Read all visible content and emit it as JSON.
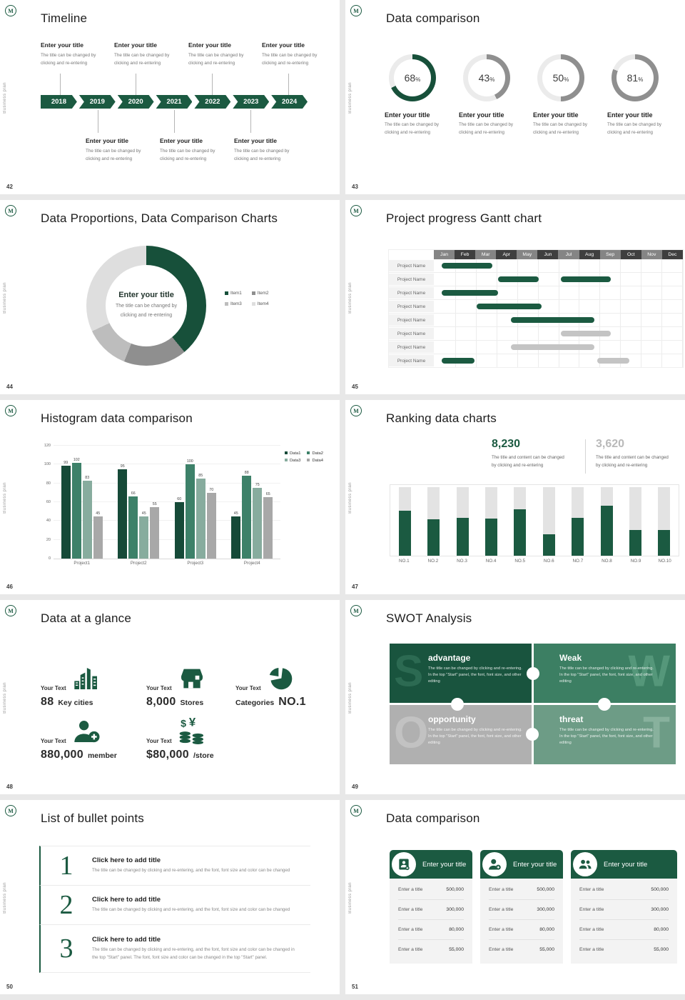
{
  "chrome": {
    "logo_letter": "M",
    "side_label": "Business plan"
  },
  "theme": {
    "green": "#1b5a41",
    "green_dark": "#17503a",
    "gray_ring": "#8f8f8f",
    "track": "#ebebeb"
  },
  "slides": {
    "timeline": {
      "page_number": "42",
      "title": "Timeline",
      "years": [
        "2018",
        "2019",
        "2020",
        "2021",
        "2022",
        "2023",
        "2024"
      ],
      "entry": {
        "title": "Enter your title",
        "desc_line1": "The title can be changed by",
        "desc_line2": "clicking and re-entering"
      }
    },
    "data_comparison_rings": {
      "page_number": "43",
      "title": "Data comparison",
      "desc_line1": "The title can be changed by",
      "desc_line2": "clicking and re-entering"
    },
    "proportions": {
      "page_number": "44",
      "title": "Data Proportions, Data Comparison Charts",
      "center_title": "Enter your title",
      "center_desc_line1": "The title can be changed by",
      "center_desc_line2": "clicking and re-entering"
    },
    "gantt": {
      "page_number": "45",
      "title": "Project progress Gantt chart"
    },
    "histogram": {
      "page_number": "46",
      "title": "Histogram data comparison"
    },
    "ranking": {
      "page_number": "47",
      "title": "Ranking data charts",
      "stat_left": {
        "value": "8,230",
        "desc_line1": "The title and content can be changed",
        "desc_line2": "by clicking and re-entering"
      },
      "stat_right": {
        "value": "3,620",
        "desc_line1": "The title and content can be changed",
        "desc_line2": "by clicking and re-entering"
      }
    },
    "glance": {
      "page_number": "48",
      "title": "Data at a glance",
      "items": [
        {
          "label": "Your Text",
          "big": "88",
          "small": "Key cities",
          "icon": "city-buildings-icon",
          "big_first": true
        },
        {
          "label": "Your Text",
          "big": "8,000",
          "small": "Stores",
          "icon": "store-icon",
          "big_first": true
        },
        {
          "label": "Your Text",
          "big": "NO.1",
          "small": "Categories",
          "icon": "pie-chart-icon",
          "big_first": false
        },
        {
          "label": "Your Text",
          "big": "880,000",
          "small": "member",
          "icon": "person-add-icon",
          "big_first": true
        },
        {
          "label": "Your Text",
          "big": "$80,000",
          "small": "/store",
          "icon": "coins-icon",
          "big_first": true
        }
      ]
    },
    "swot": {
      "page_number": "49",
      "title": "SWOT Analysis",
      "body": "The title can be changed by clicking and re-entering. In the top \"Start\" panel, the font, font size, and other editing",
      "quads": [
        {
          "letter": "S",
          "title": "advantage",
          "color": "#19543e",
          "letter_color": "#2c6a52"
        },
        {
          "letter": "W",
          "title": "Weak",
          "color": "#3c7f63",
          "letter_color": "#55977a"
        },
        {
          "letter": "O",
          "title": "opportunity",
          "color": "#b0b0b0",
          "letter_color": "#c2c2c2"
        },
        {
          "letter": "T",
          "title": "threat",
          "color": "#6d9c86",
          "letter_color": "#88b19d"
        }
      ]
    },
    "bullets": {
      "page_number": "50",
      "title": "List of bullet points",
      "rows": [
        {
          "num": "1",
          "title": "Click here to add title",
          "desc": "The title can be changed by clicking and re-entering, and the font, font size and color can be changed"
        },
        {
          "num": "2",
          "title": "Click here to add title",
          "desc": "The title can be changed by clicking and re-entering, and the font, font size and color can be changed"
        },
        {
          "num": "3",
          "title": "Click here to add title",
          "desc": "The title can be changed by clicking and re-entering, and the font, font size and color can be changed in the top \"Start\" panel. The font, font size and color can be changed in the top \"Start\" panel."
        }
      ]
    },
    "cards": {
      "page_number": "51",
      "title": "Data comparison",
      "cards": [
        {
          "header": "Enter your title",
          "icon": "id-card-icon",
          "rows": [
            [
              "Enter a title",
              "500,000"
            ],
            [
              "Enter a title",
              "300,000"
            ],
            [
              "Enter a title",
              "80,000"
            ],
            [
              "Enter a title",
              "55,000"
            ]
          ]
        },
        {
          "header": "Enter your title",
          "icon": "person-add-icon",
          "rows": [
            [
              "Enter a title",
              "500,000"
            ],
            [
              "Enter a title",
              "300,000"
            ],
            [
              "Enter a title",
              "80,000"
            ],
            [
              "Enter a title",
              "55,000"
            ]
          ]
        },
        {
          "header": "Enter your title",
          "icon": "people-icon",
          "rows": [
            [
              "Enter a title",
              "500,000"
            ],
            [
              "Enter a title",
              "300,000"
            ],
            [
              "Enter a title",
              "80,000"
            ],
            [
              "Enter a title",
              "55,000"
            ]
          ]
        }
      ]
    }
  },
  "chart_data": [
    {
      "type": "donut-gauge",
      "slide": "43",
      "track_color": "#ebebeb",
      "items": [
        {
          "label": "Enter your title",
          "percent": 68,
          "color": "#17503a"
        },
        {
          "label": "Enter your title",
          "percent": 43,
          "color": "#8f8f8f"
        },
        {
          "label": "Enter your title",
          "percent": 50,
          "color": "#8f8f8f"
        },
        {
          "label": "Enter your title",
          "percent": 81,
          "color": "#8f8f8f"
        }
      ]
    },
    {
      "type": "pie",
      "slide": "44",
      "donut": true,
      "legend_position": "right",
      "labels": [
        "Item1",
        "Item2",
        "Item3",
        "Item4"
      ],
      "values": [
        39,
        17,
        12,
        32
      ],
      "colors": [
        "#17503a",
        "#8f8f8f",
        "#bdbdbd",
        "#dedede"
      ]
    },
    {
      "type": "gantt",
      "slide": "45",
      "row_label": "Project Name",
      "months": [
        "Jan",
        "Feb",
        "Mar",
        "Apr",
        "May",
        "Jun",
        "Jul",
        "Aug",
        "Sep",
        "Oct",
        "Nov",
        "Dec"
      ],
      "rows": [
        [
          {
            "start": 0.3,
            "end": 2.75,
            "color": "green"
          }
        ],
        [
          {
            "start": 3.05,
            "end": 5.0,
            "color": "green"
          },
          {
            "start": 6.1,
            "end": 8.5,
            "color": "green"
          }
        ],
        [
          {
            "start": 0.3,
            "end": 3.05,
            "color": "green"
          }
        ],
        [
          {
            "start": 2.0,
            "end": 5.15,
            "color": "green"
          }
        ],
        [
          {
            "start": 3.65,
            "end": 7.7,
            "color": "green"
          }
        ],
        [
          {
            "start": 6.1,
            "end": 8.5,
            "color": "gray"
          }
        ],
        [
          {
            "start": 3.65,
            "end": 7.7,
            "color": "gray"
          }
        ],
        [
          {
            "start": 0.3,
            "end": 1.9,
            "color": "green"
          },
          {
            "start": 7.85,
            "end": 9.4,
            "color": "gray"
          }
        ]
      ]
    },
    {
      "type": "bar",
      "slide": "46",
      "title": "Histogram data comparison",
      "categories": [
        "Project1",
        "Project2",
        "Project3",
        "Project4"
      ],
      "series": [
        {
          "name": "Data1",
          "color": "#164a38",
          "values": [
            99,
            95,
            60,
            45
          ]
        },
        {
          "name": "Data2",
          "color": "#3d8169",
          "values": [
            102,
            66,
            100,
            88
          ]
        },
        {
          "name": "Data3",
          "color": "#87ac9e",
          "values": [
            83,
            45,
            85,
            75
          ]
        },
        {
          "name": "Data4",
          "color": "#a8a8a8",
          "values": [
            45,
            55,
            70,
            65
          ]
        }
      ],
      "ylim": [
        0,
        120
      ],
      "yticks": [
        0,
        20,
        40,
        60,
        80,
        100,
        120
      ],
      "grid": true,
      "legend_position": "top-right"
    },
    {
      "type": "progress-bars",
      "slide": "47",
      "categories": [
        "NO.1",
        "NO.2",
        "NO.3",
        "NO.4",
        "NO.5",
        "NO.6",
        "NO.7",
        "NO.8",
        "NO.9",
        "NO.10"
      ],
      "values": [
        66,
        53,
        55,
        54,
        68,
        31,
        55,
        73,
        37,
        37
      ],
      "max": 100,
      "fill_color": "#1b5a41",
      "track_color": "#e3e3e3"
    }
  ]
}
